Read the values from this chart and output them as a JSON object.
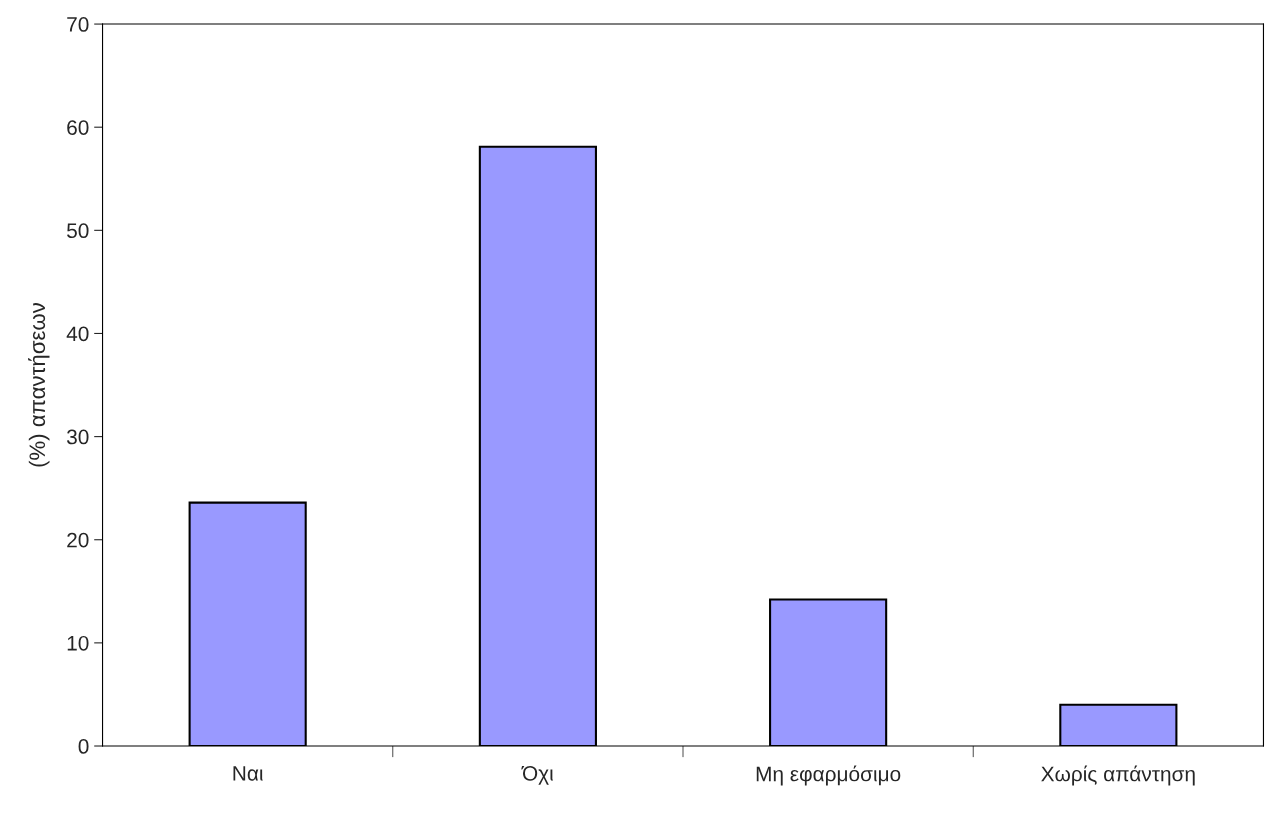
{
  "chart_data": {
    "type": "bar",
    "ylabel": "(%) απαντήσεων",
    "categories": [
      "Ναι",
      "Όχι",
      "Μη εφαρμόσιμο",
      "Χωρίς απάντηση"
    ],
    "values": [
      23.6,
      58.1,
      14.2,
      4.0
    ],
    "color": "#9999ff",
    "ylim": [
      0,
      70
    ],
    "yticks": [
      0,
      10,
      20,
      30,
      40,
      50,
      60,
      70
    ],
    "grid": false,
    "legend": false
  }
}
